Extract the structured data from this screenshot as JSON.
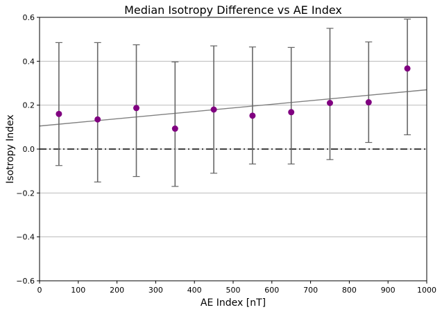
{
  "chart_data": {
    "type": "scatter",
    "title": "Median Isotropy Difference vs AE Index",
    "xlabel": "AE Index [nT]",
    "ylabel": "Isotropy Index",
    "xlim": [
      0,
      1000
    ],
    "ylim": [
      -0.6,
      0.6
    ],
    "xticks": [
      "0",
      "100",
      "200",
      "300",
      "400",
      "500",
      "600",
      "700",
      "800",
      "900",
      "1000"
    ],
    "yticks": [
      "−0.6",
      "−0.4",
      "−0.2",
      "0.0",
      "0.2",
      "0.4",
      "0.6"
    ],
    "grid": "horizontal",
    "colors": {
      "marker": "#800080",
      "errorbar": "#666666",
      "trend": "#808080",
      "zero_line": "#000000",
      "grid": "#b0b0b0"
    },
    "points": [
      {
        "x": 50,
        "y": 0.16,
        "lower": -0.075,
        "upper": 0.485
      },
      {
        "x": 150,
        "y": 0.135,
        "lower": -0.15,
        "upper": 0.485
      },
      {
        "x": 250,
        "y": 0.187,
        "lower": -0.125,
        "upper": 0.475
      },
      {
        "x": 350,
        "y": 0.093,
        "lower": -0.17,
        "upper": 0.397
      },
      {
        "x": 450,
        "y": 0.18,
        "lower": -0.11,
        "upper": 0.47
      },
      {
        "x": 550,
        "y": 0.152,
        "lower": -0.068,
        "upper": 0.465
      },
      {
        "x": 650,
        "y": 0.168,
        "lower": -0.068,
        "upper": 0.463
      },
      {
        "x": 750,
        "y": 0.21,
        "lower": -0.048,
        "upper": 0.55
      },
      {
        "x": 850,
        "y": 0.213,
        "lower": 0.03,
        "upper": 0.488
      },
      {
        "x": 950,
        "y": 0.367,
        "lower": 0.065,
        "upper": 0.592
      }
    ],
    "trendline": {
      "x": [
        0,
        1000
      ],
      "y": [
        0.105,
        0.27
      ]
    },
    "reference_line": {
      "y": 0.0,
      "style": "dash-dot"
    }
  }
}
